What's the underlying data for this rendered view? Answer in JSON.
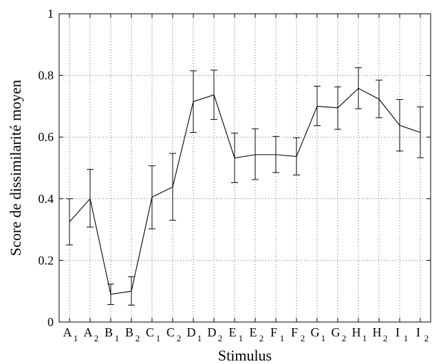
{
  "chart_data": {
    "type": "line",
    "xlabel": "Stimulus",
    "ylabel": "Score de dissimilarité moyen",
    "ylim": [
      0,
      1
    ],
    "yticks": [
      0,
      0.2,
      0.4,
      0.6,
      0.8,
      1
    ],
    "ytick_labels": [
      "0",
      "0.2",
      "0.4",
      "0.6",
      "0.8",
      "1"
    ],
    "grid": "dotted",
    "categories": [
      {
        "base": "A",
        "sub": "1"
      },
      {
        "base": "A",
        "sub": "2"
      },
      {
        "base": "B",
        "sub": "1"
      },
      {
        "base": "B",
        "sub": "2"
      },
      {
        "base": "C",
        "sub": "1"
      },
      {
        "base": "C",
        "sub": "2"
      },
      {
        "base": "D",
        "sub": "1"
      },
      {
        "base": "D",
        "sub": "2"
      },
      {
        "base": "E",
        "sub": "1"
      },
      {
        "base": "E",
        "sub": "2"
      },
      {
        "base": "F",
        "sub": "1"
      },
      {
        "base": "F",
        "sub": "2"
      },
      {
        "base": "G",
        "sub": "1"
      },
      {
        "base": "G",
        "sub": "2"
      },
      {
        "base": "H",
        "sub": "1"
      },
      {
        "base": "H",
        "sub": "2"
      },
      {
        "base": "I",
        "sub": "1"
      },
      {
        "base": "I",
        "sub": "2"
      }
    ],
    "series": [
      {
        "values": [
          0.325,
          0.4,
          0.09,
          0.1,
          0.405,
          0.438,
          0.715,
          0.737,
          0.532,
          0.543,
          0.543,
          0.537,
          0.7,
          0.695,
          0.758,
          0.723,
          0.638,
          0.615
        ],
        "error_low": [
          0.25,
          0.308,
          0.057,
          0.055,
          0.302,
          0.33,
          0.615,
          0.657,
          0.452,
          0.462,
          0.485,
          0.477,
          0.637,
          0.625,
          0.692,
          0.663,
          0.555,
          0.533
        ],
        "error_high": [
          0.4,
          0.495,
          0.123,
          0.147,
          0.507,
          0.547,
          0.815,
          0.817,
          0.613,
          0.627,
          0.602,
          0.598,
          0.765,
          0.763,
          0.825,
          0.785,
          0.722,
          0.698
        ]
      }
    ]
  }
}
